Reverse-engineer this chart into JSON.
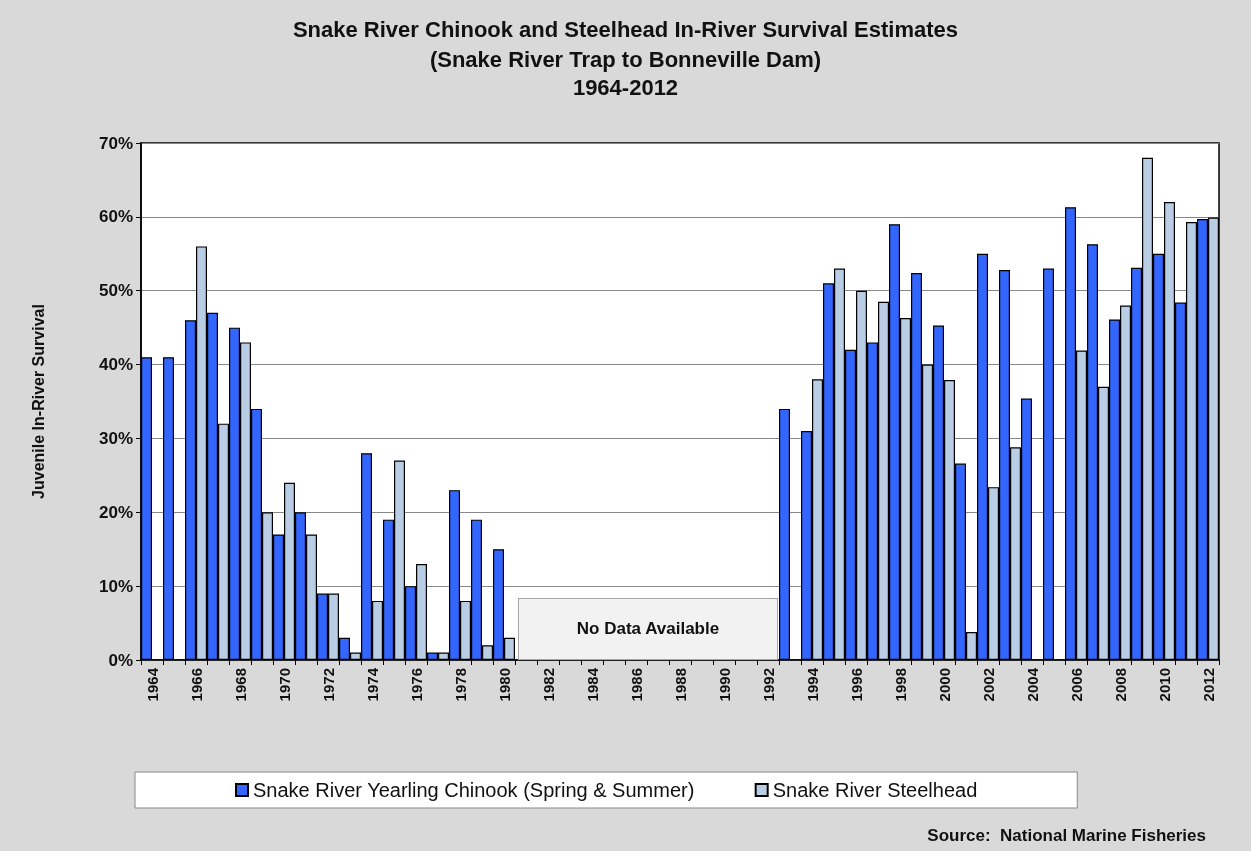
{
  "chart_data": {
    "type": "bar",
    "title": "Snake River Chinook and Steelhead In-River Survival Estimates",
    "subtitle": "(Snake River Trap to Bonneville Dam)\n1964-2012",
    "ylabel": "Juvenile In-River Survival",
    "categories": [
      "1964",
      null,
      "1966",
      null,
      "1968",
      null,
      "1970",
      null,
      "1972",
      null,
      "1974",
      null,
      "1976",
      null,
      "1978",
      null,
      "1980",
      null,
      "1982",
      null,
      "1984",
      null,
      "1986",
      null,
      "1988",
      null,
      "1990",
      null,
      "1992",
      null,
      "1994",
      null,
      "1996",
      null,
      "1998",
      null,
      "2000",
      null,
      "2002",
      null,
      "2004",
      null,
      "2006",
      null,
      "2008",
      null,
      "2010",
      null,
      "2012"
    ],
    "series": [
      {
        "name": "Snake River Yearling Chinook (Spring & Summer)",
        "color": "#3366ff",
        "values": [
          41,
          41,
          46,
          47,
          45,
          34,
          17,
          20,
          9,
          3,
          28,
          19,
          10,
          1,
          23,
          19,
          15,
          null,
          null,
          null,
          null,
          null,
          null,
          null,
          null,
          null,
          null,
          null,
          null,
          34,
          31,
          51,
          42,
          43,
          59,
          52.4,
          45.3,
          26.6,
          55,
          52.8,
          35.4,
          53,
          61.3,
          56.3,
          46.1,
          53.1,
          55,
          48.4,
          59.7
        ]
      },
      {
        "name": "Snake River Steelhead",
        "color": "#b9cde5",
        "values": [
          null,
          null,
          56,
          32,
          43,
          20,
          24,
          17,
          9,
          1,
          8,
          27,
          13,
          1,
          8,
          2,
          3,
          null,
          null,
          null,
          null,
          null,
          null,
          null,
          null,
          null,
          null,
          null,
          null,
          null,
          38,
          53,
          50,
          48.5,
          46.3,
          40,
          37.9,
          3.8,
          23.4,
          28.8,
          null,
          null,
          41.9,
          37,
          48,
          68,
          62,
          59.3,
          59.9
        ]
      }
    ],
    "ylim": [
      0,
      70
    ],
    "yticks": [
      {
        "value": 0,
        "label": "0%"
      },
      {
        "value": 10,
        "label": "10%"
      },
      {
        "value": 20,
        "label": "20%"
      },
      {
        "value": 30,
        "label": "30%"
      },
      {
        "value": 40,
        "label": "40%"
      },
      {
        "value": 50,
        "label": "50%"
      },
      {
        "value": 60,
        "label": "60%"
      },
      {
        "value": 70,
        "label": "70%"
      }
    ],
    "grid": "y",
    "legend": "bottom",
    "annotations": [
      "No Data Available",
      "Source:  National Marine Fisheries"
    ]
  }
}
